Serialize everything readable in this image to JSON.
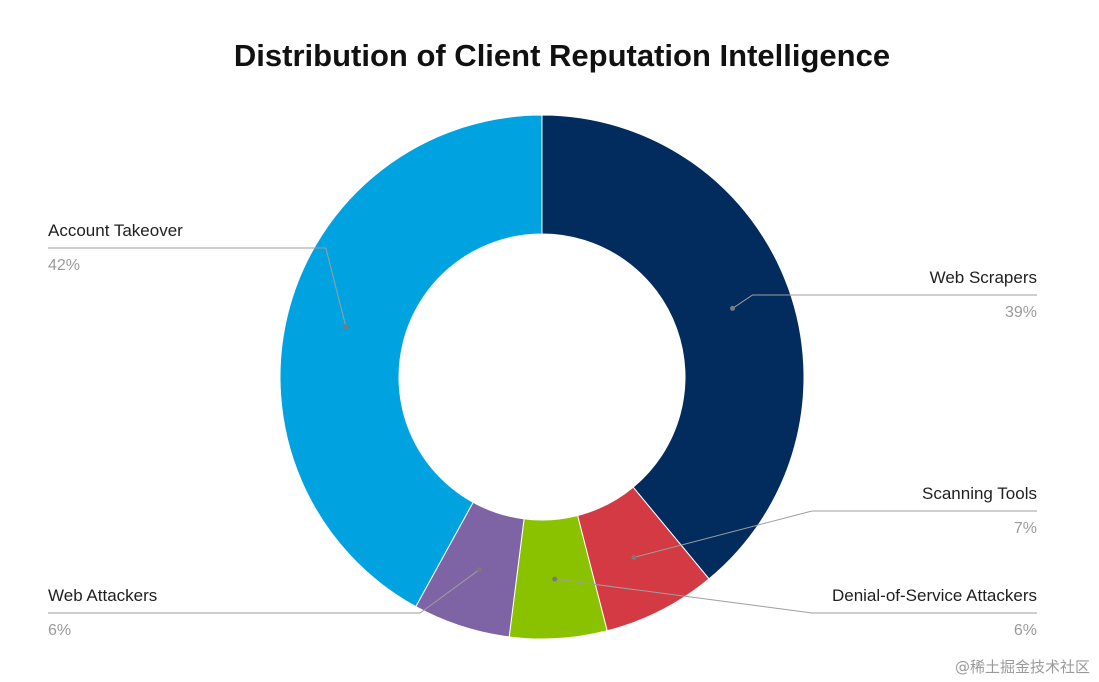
{
  "chart_data": {
    "type": "pie",
    "title": "Distribution of Client Reputation Intelligence",
    "slices": [
      {
        "name": "Web Scrapers",
        "value": 39,
        "label": "39%",
        "color": "#022c5e"
      },
      {
        "name": "Scanning Tools",
        "value": 7,
        "label": "7%",
        "color": "#d43a44"
      },
      {
        "name": "Denial-of-Service Attackers",
        "value": 6,
        "label": "6%",
        "color": "#8bc200"
      },
      {
        "name": "Web Attackers",
        "value": 6,
        "label": "6%",
        "color": "#7e64a4"
      },
      {
        "name": "Account Takeover",
        "value": 42,
        "label": "42%",
        "color": "#00a3e0"
      }
    ],
    "donut": true,
    "start": "12 o'clock, clockwise",
    "legend": "none (callout labels)"
  },
  "watermark": "@稀土掘金技术社区"
}
